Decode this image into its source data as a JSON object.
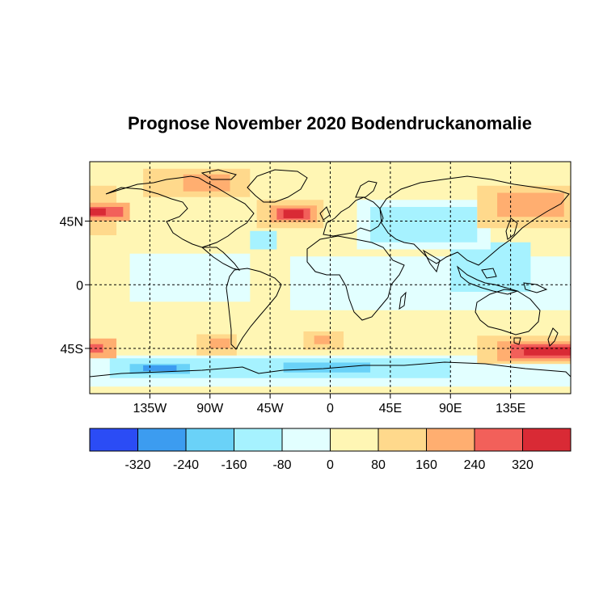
{
  "title": "Prognose November 2020 Bodendruckanomalie",
  "map": {
    "lon_range": [
      -180,
      180
    ],
    "lat_range": [
      -77,
      87
    ],
    "x_ticks": [
      {
        "lon": -135,
        "label": "135W"
      },
      {
        "lon": -90,
        "label": "90W"
      },
      {
        "lon": -45,
        "label": "45W"
      },
      {
        "lon": 0,
        "label": "0"
      },
      {
        "lon": 45,
        "label": "45E"
      },
      {
        "lon": 90,
        "label": "90E"
      },
      {
        "lon": 135,
        "label": "135E"
      }
    ],
    "y_ticks": [
      {
        "lat": 45,
        "label": "45N"
      },
      {
        "lat": 0,
        "label": "0"
      },
      {
        "lat": -45,
        "label": "45S"
      }
    ],
    "background_color": "#fff6b4",
    "anomaly_fields": [
      {
        "lon_range": [
          -30,
          180
        ],
        "lat_range": [
          -18,
          20
        ],
        "color": "#e2ffff"
      },
      {
        "lon_range": [
          -150,
          -60
        ],
        "lat_range": [
          -12,
          22
        ],
        "color": "#e2ffff"
      },
      {
        "lon_range": [
          90,
          150
        ],
        "lat_range": [
          -5,
          30
        ],
        "color": "#a6f2ff"
      },
      {
        "lon_range": [
          20,
          120
        ],
        "lat_range": [
          25,
          60
        ],
        "color": "#e2ffff"
      },
      {
        "lon_range": [
          30,
          110
        ],
        "lat_range": [
          30,
          55
        ],
        "color": "#a6f2ff"
      },
      {
        "lon_range": [
          -60,
          -40
        ],
        "lat_range": [
          25,
          38
        ],
        "color": "#a6f2ff"
      },
      {
        "lon_range": [
          -180,
          180
        ],
        "lat_range": [
          -72,
          -50
        ],
        "color": "#e2ffff"
      },
      {
        "lon_range": [
          -165,
          90
        ],
        "lat_range": [
          -66,
          -52
        ],
        "color": "#a6f2ff"
      },
      {
        "lon_range": [
          -150,
          -105
        ],
        "lat_range": [
          -63,
          -56
        ],
        "color": "#6ad2f8"
      },
      {
        "lon_range": [
          -140,
          -115
        ],
        "lat_range": [
          -61,
          -57
        ],
        "color": "#3c9cf0"
      },
      {
        "lon_range": [
          -35,
          30
        ],
        "lat_range": [
          -62,
          -55
        ],
        "color": "#6ad2f8"
      },
      {
        "lon_range": [
          -180,
          -160
        ],
        "lat_range": [
          35,
          70
        ],
        "color": "#ffd98c"
      },
      {
        "lon_range": [
          -180,
          -150
        ],
        "lat_range": [
          45,
          58
        ],
        "color": "#ffae70"
      },
      {
        "lon_range": [
          -180,
          -155
        ],
        "lat_range": [
          48,
          55
        ],
        "color": "#f2605a"
      },
      {
        "lon_range": [
          -180,
          -168
        ],
        "lat_range": [
          49,
          54
        ],
        "color": "#d92a35"
      },
      {
        "lon_range": [
          -140,
          -60
        ],
        "lat_range": [
          62,
          82
        ],
        "color": "#ffd98c"
      },
      {
        "lon_range": [
          -110,
          -75
        ],
        "lat_range": [
          66,
          78
        ],
        "color": "#ffae70"
      },
      {
        "lon_range": [
          -55,
          -5
        ],
        "lat_range": [
          40,
          60
        ],
        "color": "#ffd98c"
      },
      {
        "lon_range": [
          -45,
          -10
        ],
        "lat_range": [
          44,
          56
        ],
        "color": "#ffae70"
      },
      {
        "lon_range": [
          -40,
          -15
        ],
        "lat_range": [
          46,
          54
        ],
        "color": "#f2605a"
      },
      {
        "lon_range": [
          -35,
          -20
        ],
        "lat_range": [
          47,
          53
        ],
        "color": "#d92a35"
      },
      {
        "lon_range": [
          110,
          180
        ],
        "lat_range": [
          40,
          70
        ],
        "color": "#ffd98c"
      },
      {
        "lon_range": [
          125,
          175
        ],
        "lat_range": [
          48,
          65
        ],
        "color": "#ffae70"
      },
      {
        "lon_range": [
          -180,
          -160
        ],
        "lat_range": [
          -52,
          -38
        ],
        "color": "#ffae70"
      },
      {
        "lon_range": [
          -180,
          -170
        ],
        "lat_range": [
          -48,
          -42
        ],
        "color": "#f2605a"
      },
      {
        "lon_range": [
          -100,
          -70
        ],
        "lat_range": [
          -50,
          -35
        ],
        "color": "#ffd98c"
      },
      {
        "lon_range": [
          -90,
          -75
        ],
        "lat_range": [
          -45,
          -38
        ],
        "color": "#ffae70"
      },
      {
        "lon_range": [
          -20,
          10
        ],
        "lat_range": [
          -46,
          -33
        ],
        "color": "#ffd98c"
      },
      {
        "lon_range": [
          -12,
          0
        ],
        "lat_range": [
          -42,
          -36
        ],
        "color": "#ffae70"
      },
      {
        "lon_range": [
          110,
          180
        ],
        "lat_range": [
          -56,
          -36
        ],
        "color": "#ffd98c"
      },
      {
        "lon_range": [
          125,
          180
        ],
        "lat_range": [
          -54,
          -40
        ],
        "color": "#ffae70"
      },
      {
        "lon_range": [
          135,
          180
        ],
        "lat_range": [
          -52,
          -42
        ],
        "color": "#f2605a"
      },
      {
        "lon_range": [
          145,
          180
        ],
        "lat_range": [
          -50,
          -44
        ],
        "color": "#d92a35"
      }
    ]
  },
  "colorbar": {
    "colors": [
      "#2b4cf5",
      "#3c9cf0",
      "#6ad2f8",
      "#a6f2ff",
      "#e2ffff",
      "#fff6b4",
      "#ffd98c",
      "#ffae70",
      "#f2605a",
      "#d92a35"
    ],
    "labels": [
      "-320",
      "-240",
      "-160",
      "-80",
      "0",
      "80",
      "160",
      "240",
      "320"
    ]
  }
}
